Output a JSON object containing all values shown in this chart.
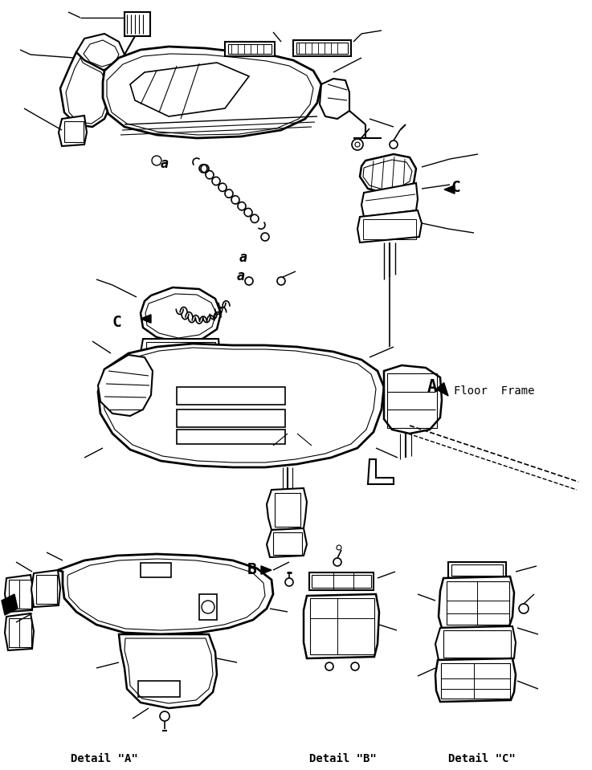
{
  "background_color": "#ffffff",
  "line_color": "#000000",
  "labels": {
    "floor_frame": "Floor  Frame",
    "detail_a": "Detail \"A\"",
    "detail_b": "Detail \"B\"",
    "detail_c": "Detail \"C\"",
    "label_A": "A",
    "label_B": "B",
    "label_C_right": "C",
    "label_C_left": "C",
    "label_a1": "a",
    "label_a2": "a"
  },
  "figsize": [
    7.37,
    9.59
  ],
  "dpi": 100
}
